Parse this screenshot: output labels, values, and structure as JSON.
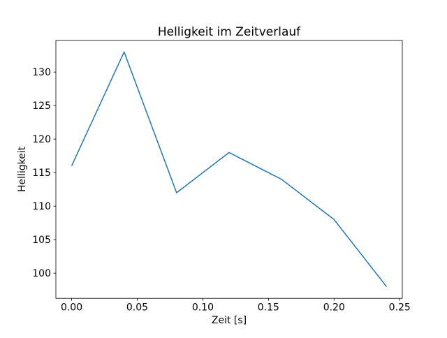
{
  "chart_data": {
    "type": "line",
    "title": "Helligkeit im Zeitverlauf",
    "xlabel": "Zeit [s]",
    "ylabel": "Helligkeit",
    "x": [
      0.0,
      0.04,
      0.08,
      0.12,
      0.16,
      0.2,
      0.24
    ],
    "y": [
      116,
      133,
      112,
      118,
      114,
      108,
      98
    ],
    "series": [
      {
        "name": "Helligkeit",
        "x": [
          0.0,
          0.04,
          0.08,
          0.12,
          0.16,
          0.2,
          0.24
        ],
        "values": [
          116,
          133,
          112,
          118,
          114,
          108,
          98
        ]
      }
    ],
    "xlim": [
      -0.012,
      0.252
    ],
    "ylim": [
      96.25,
      134.75
    ],
    "xticks": [
      {
        "value": 0.0,
        "label": "0.00"
      },
      {
        "value": 0.05,
        "label": "0.05"
      },
      {
        "value": 0.1,
        "label": "0.10"
      },
      {
        "value": 0.15,
        "label": "0.15"
      },
      {
        "value": 0.2,
        "label": "0.20"
      },
      {
        "value": 0.25,
        "label": "0.25"
      }
    ],
    "yticks": [
      {
        "value": 100,
        "label": "100"
      },
      {
        "value": 105,
        "label": "105"
      },
      {
        "value": 110,
        "label": "110"
      },
      {
        "value": 115,
        "label": "115"
      },
      {
        "value": 120,
        "label": "120"
      },
      {
        "value": 125,
        "label": "125"
      },
      {
        "value": 130,
        "label": "130"
      }
    ],
    "line_color": "#1f77b4",
    "line_width": 1.5,
    "spine_color": "#000000",
    "background_color": "#ffffff",
    "grid": false,
    "legend": null
  }
}
